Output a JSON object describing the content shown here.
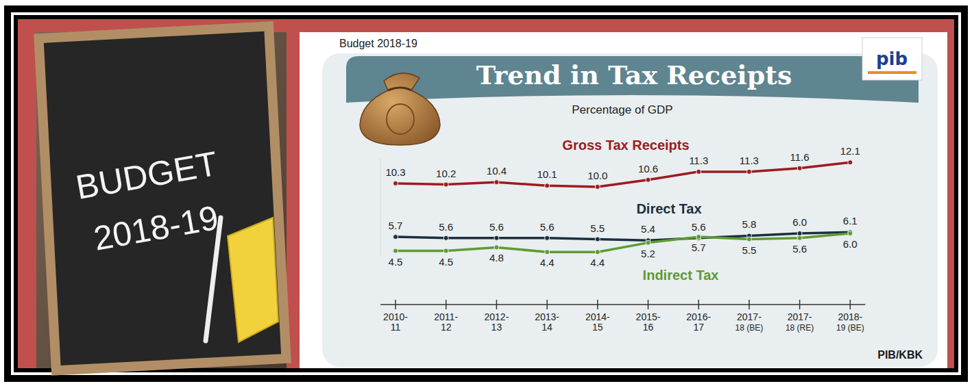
{
  "header": {
    "label": "Budget 2018-19",
    "logo": "pib"
  },
  "board": {
    "lines": [
      "BUDGET",
      "2018-19"
    ]
  },
  "footer": {
    "source": "PIB/KBK"
  },
  "chart_data": {
    "type": "line",
    "title": "Trend in Tax Receipts",
    "subtitle": "Percentage of GDP",
    "categories": [
      "2010-11",
      "2011-12",
      "2012-13",
      "2013-14",
      "2014-15",
      "2015-16",
      "2016-17",
      "2017-18 (BE)",
      "2017-18 (RE)",
      "2018-19 (BE)"
    ],
    "series": [
      {
        "name": "Gross Tax Receipts",
        "color": "#9e1b1f",
        "marker": "circle",
        "values": [
          10.3,
          10.2,
          10.4,
          10.1,
          10.0,
          10.6,
          11.3,
          11.3,
          11.6,
          12.1
        ],
        "value_labels": [
          "10.3",
          "10.2",
          "10.4",
          "10.1",
          "10.0",
          "10.6",
          "11.3",
          "11.3",
          "11.6",
          "12.1"
        ]
      },
      {
        "name": "Direct Tax",
        "color": "#1c2f3f",
        "marker": "circle",
        "values": [
          5.7,
          5.6,
          5.6,
          5.6,
          5.5,
          5.4,
          5.6,
          5.8,
          6.0,
          6.1
        ],
        "value_labels": [
          "5.7",
          "5.6",
          "5.6",
          "5.6",
          "5.5",
          "5.4",
          "5.6",
          "5.8",
          "6.0",
          "6.1"
        ]
      },
      {
        "name": "Indirect Tax",
        "color": "#5e9b32",
        "marker": "circle",
        "values": [
          4.5,
          4.5,
          4.8,
          4.4,
          4.4,
          5.2,
          5.7,
          5.5,
          5.6,
          6.0
        ],
        "value_labels": [
          "4.5",
          "4.5",
          "4.8",
          "4.4",
          "4.4",
          "5.2",
          "5.7",
          "5.5",
          "5.6",
          "6.0"
        ]
      }
    ],
    "ylim": [
      4,
      12.5
    ],
    "grid": false,
    "data_labels": true,
    "tick_labels": "x"
  }
}
